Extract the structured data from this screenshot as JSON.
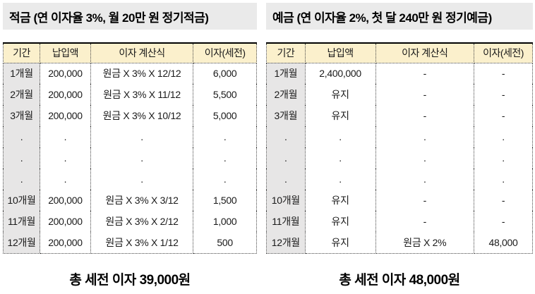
{
  "colors": {
    "title_bg": "#EAEAEA",
    "header_bg": "#FBF0CC",
    "period_col_bg": "#E7E6E6",
    "border_color": "#444444"
  },
  "savings": {
    "title": "적금 (연 이자율 3%, 월 20만 원 정기적금)",
    "columns": [
      "기간",
      "납입액",
      "이자 계산식",
      "이자(세전)"
    ],
    "rows": [
      [
        "1개월",
        "200,000",
        "원금 X 3% X 12/12",
        "6,000"
      ],
      [
        "2개월",
        "200,000",
        "원금 X 3% X 11/12",
        "5,500"
      ],
      [
        "3개월",
        "200,000",
        "원금 X 3% X 10/12",
        "5,000"
      ],
      [
        ".",
        ".",
        ".",
        "."
      ],
      [
        ".",
        ".",
        ".",
        "."
      ],
      [
        ".",
        ".",
        ".",
        "."
      ],
      [
        "10개월",
        "200,000",
        "원금 X 3% X 3/12",
        "1,500"
      ],
      [
        "11개월",
        "200,000",
        "원금 X 3% X 2/12",
        "1,000"
      ],
      [
        "12개월",
        "200,000",
        "원금 X 3% X 1/12",
        "500"
      ]
    ],
    "total": "총 세전 이자 39,000원"
  },
  "deposit": {
    "title": "예금 (연 이자율 2%, 첫 달 240만 원 정기예금)",
    "columns": [
      "기간",
      "납입액",
      "이자 계산식",
      "이자(세전)"
    ],
    "rows": [
      [
        "1개월",
        "2,400,000",
        "-",
        "-"
      ],
      [
        "2개월",
        "유지",
        "-",
        "-"
      ],
      [
        "3개월",
        "유지",
        "-",
        "-"
      ],
      [
        ".",
        ".",
        ".",
        "."
      ],
      [
        ".",
        ".",
        ".",
        "."
      ],
      [
        ".",
        ".",
        ".",
        "."
      ],
      [
        "10개월",
        "유지",
        "-",
        "-"
      ],
      [
        "11개월",
        "유지",
        "-",
        "-"
      ],
      [
        "12개월",
        "유지",
        "원금 X 2%",
        "48,000"
      ]
    ],
    "total": "총 세전 이자 48,000원"
  }
}
